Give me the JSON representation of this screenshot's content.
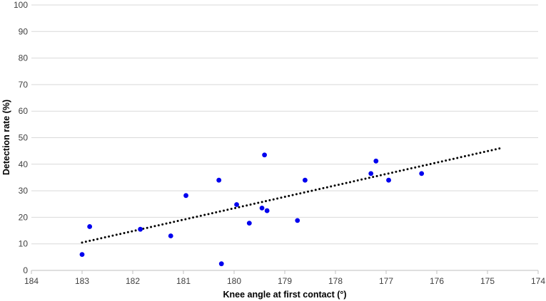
{
  "chart_data": {
    "type": "scatter",
    "title": "",
    "xlabel": "Knee angle at first contact (°)",
    "ylabel": "Detection rate (%)",
    "xlim": [
      184,
      174
    ],
    "x_reversed": true,
    "ylim": [
      0,
      100
    ],
    "xticks": [
      184,
      183,
      182,
      181,
      180,
      179,
      178,
      177,
      176,
      175,
      174
    ],
    "yticks": [
      0,
      10,
      20,
      30,
      40,
      50,
      60,
      70,
      80,
      90,
      100
    ],
    "grid": "horizontal",
    "legend": "none",
    "colors": {
      "points": "#0000ee",
      "trendline": "#000000",
      "grid": "#d9d9d9"
    },
    "series": [
      {
        "x": [
          183.0,
          182.85,
          181.85,
          181.25,
          180.95,
          180.3,
          180.25,
          179.95,
          179.7,
          179.45,
          179.4,
          179.35,
          178.75,
          178.6,
          177.3,
          177.2,
          176.95,
          176.3
        ],
        "y": [
          6,
          16.5,
          15.5,
          13,
          28.2,
          34,
          2.5,
          24.8,
          17.8,
          23.5,
          43.5,
          22.5,
          18.8,
          34,
          36.5,
          41.2,
          34,
          36.5
        ]
      }
    ],
    "trendline": {
      "style": "dotted",
      "x": [
        183.0,
        174.75
      ],
      "y": [
        10.5,
        46
      ]
    }
  }
}
